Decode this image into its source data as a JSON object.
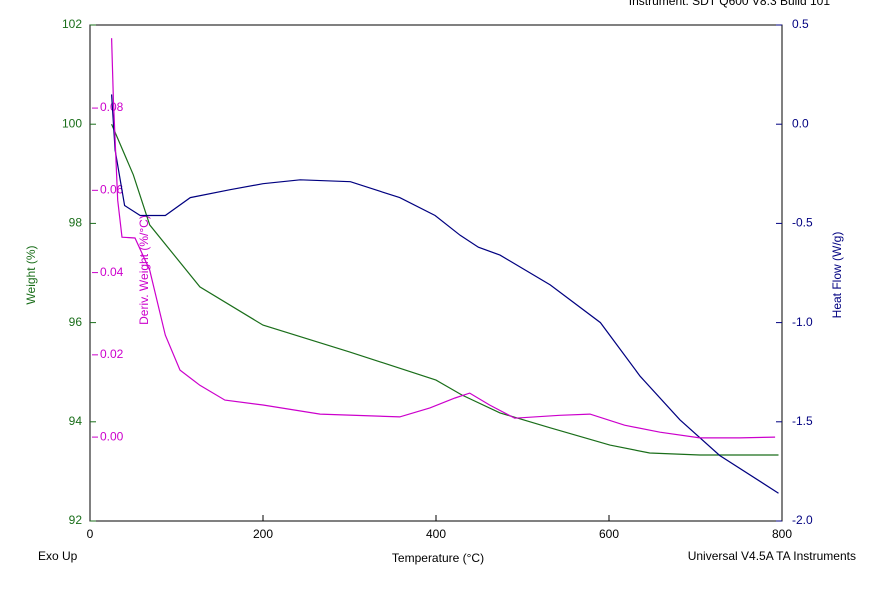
{
  "chart_data": {
    "type": "line",
    "title": "Instrument: SDT Q600 V8.3 Build 101",
    "x_label": "Temperature (°C)",
    "y_label": "Weight (%)",
    "y2_label": "Heat Flow (W/g)",
    "y3_label": "Deriv. Weight (%/°C)",
    "left_note": "Exo Up",
    "right_note": "Universal V4.5A TA Instruments",
    "xlim": [
      0,
      800
    ],
    "xticks": [
      0,
      200,
      400,
      600,
      800
    ],
    "ylim": [
      92,
      102
    ],
    "yticks": [
      92,
      94,
      96,
      98,
      100,
      102
    ],
    "y2lim": [
      -2,
      0.5
    ],
    "y2ticks": [
      {
        "value": -2,
        "label": "-2.0"
      },
      -1.5,
      {
        "value": -1,
        "label": "-1.0"
      },
      -0.5,
      {
        "value": 0,
        "label": "0.0"
      },
      0.5
    ],
    "y3lim": [
      -0.0204,
      0.1002
    ],
    "y3ticks": [
      {
        "value": 0,
        "label": "0.00"
      },
      0.02,
      0.04,
      0.06,
      0.08
    ],
    "series": [
      {
        "name": "Weight (%)",
        "color": "#1a6e1a",
        "axis": "y",
        "x": [
          25,
          50,
          69,
          127,
          200,
          300,
          400,
          430,
          474,
          532,
          601,
          647,
          705,
          796
        ],
        "values": [
          100,
          98.98,
          97.97,
          96.72,
          95.95,
          95.41,
          94.84,
          94.54,
          94.18,
          93.88,
          93.53,
          93.37,
          93.33,
          93.33
        ]
      },
      {
        "name": "Heat Flow (W/g)",
        "color": "#000080",
        "axis": "y2",
        "x": [
          25,
          29,
          40,
          58,
          87,
          116,
          162,
          200,
          243,
          301,
          358,
          399,
          428,
          449,
          474,
          532,
          590,
          636,
          682,
          728,
          796
        ],
        "values": [
          0.15,
          -0.13,
          -0.41,
          -0.46,
          -0.46,
          -0.37,
          -0.33,
          -0.3,
          -0.28,
          -0.29,
          -0.37,
          -0.46,
          -0.56,
          -0.62,
          -0.66,
          -0.81,
          -1.0,
          -1.27,
          -1.49,
          -1.67,
          -1.86
        ]
      },
      {
        "name": "Deriv. Weight (%/°C)",
        "color": "#cc00cc",
        "axis": "y3",
        "x": [
          25,
          27,
          32,
          37,
          52,
          69,
          87,
          104,
          127,
          156,
          200,
          266,
          358,
          393,
          422,
          439,
          462,
          491,
          543,
          578,
          618,
          659,
          705,
          751,
          792
        ],
        "values": [
          0.097,
          0.082,
          0.0576,
          0.0486,
          0.0484,
          0.0406,
          0.0248,
          0.0163,
          0.0126,
          0.009,
          0.0078,
          0.0056,
          0.0049,
          0.0071,
          0.0095,
          0.0107,
          0.0078,
          0.0046,
          0.0053,
          0.0056,
          0.0029,
          0.0012,
          -0.0002,
          -0.0002,
          0
        ]
      }
    ]
  }
}
